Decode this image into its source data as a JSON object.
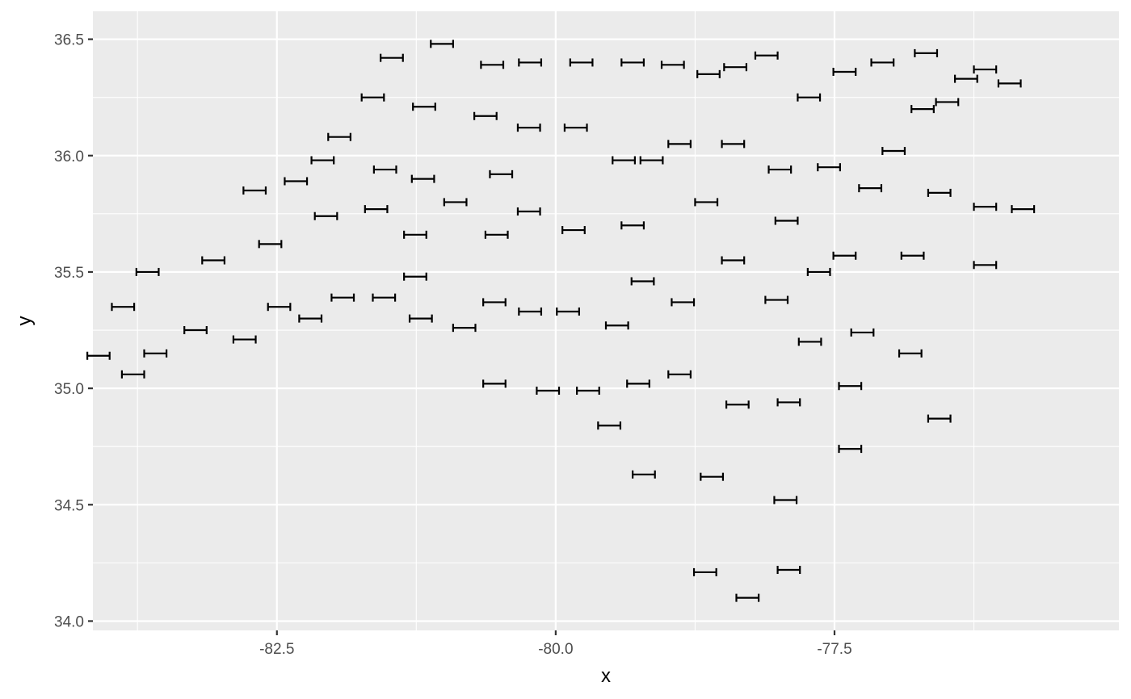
{
  "chart_data": {
    "type": "errorbarh",
    "title": "",
    "xlabel": "x",
    "ylabel": "y",
    "xlim": [
      -84.15,
      -74.95
    ],
    "ylim": [
      33.96,
      36.62
    ],
    "x_ticks": [
      -82.5,
      -80.0,
      -77.5
    ],
    "x_tick_labels": [
      "-82.5",
      "-80.0",
      "-77.5"
    ],
    "y_ticks": [
      34.0,
      34.5,
      35.0,
      35.5,
      36.0,
      36.5
    ],
    "y_tick_labels": [
      "34.0",
      "34.5",
      "35.0",
      "35.5",
      "36.0",
      "36.5"
    ],
    "grid": true,
    "background": "#ebebeb",
    "grid_color": "#ffffff",
    "bar_color": "#000000",
    "bar_halfwidth": 0.1,
    "points": [
      {
        "x": -81.02,
        "y": 36.48
      },
      {
        "x": -81.47,
        "y": 36.42
      },
      {
        "x": -80.57,
        "y": 36.39
      },
      {
        "x": -80.23,
        "y": 36.4
      },
      {
        "x": -79.77,
        "y": 36.4
      },
      {
        "x": -79.31,
        "y": 36.4
      },
      {
        "x": -78.95,
        "y": 36.39
      },
      {
        "x": -78.63,
        "y": 36.35
      },
      {
        "x": -78.39,
        "y": 36.38
      },
      {
        "x": -78.11,
        "y": 36.43
      },
      {
        "x": -77.41,
        "y": 36.36
      },
      {
        "x": -77.07,
        "y": 36.4
      },
      {
        "x": -76.68,
        "y": 36.44
      },
      {
        "x": -76.15,
        "y": 36.37
      },
      {
        "x": -76.32,
        "y": 36.33
      },
      {
        "x": -75.93,
        "y": 36.31
      },
      {
        "x": -81.64,
        "y": 36.25
      },
      {
        "x": -81.18,
        "y": 36.21
      },
      {
        "x": -80.63,
        "y": 36.17
      },
      {
        "x": -80.24,
        "y": 36.12
      },
      {
        "x": -79.82,
        "y": 36.12
      },
      {
        "x": -77.73,
        "y": 36.25
      },
      {
        "x": -76.49,
        "y": 36.23
      },
      {
        "x": -76.71,
        "y": 36.2
      },
      {
        "x": -81.94,
        "y": 36.08
      },
      {
        "x": -82.09,
        "y": 35.98
      },
      {
        "x": -82.33,
        "y": 35.89
      },
      {
        "x": -82.7,
        "y": 35.85
      },
      {
        "x": -81.53,
        "y": 35.94
      },
      {
        "x": -81.19,
        "y": 35.9
      },
      {
        "x": -80.49,
        "y": 35.92
      },
      {
        "x": -79.39,
        "y": 35.98
      },
      {
        "x": -79.14,
        "y": 35.98
      },
      {
        "x": -78.89,
        "y": 36.05
      },
      {
        "x": -78.41,
        "y": 36.05
      },
      {
        "x": -77.99,
        "y": 35.94
      },
      {
        "x": -77.55,
        "y": 35.95
      },
      {
        "x": -76.97,
        "y": 36.02
      },
      {
        "x": -77.18,
        "y": 35.86
      },
      {
        "x": -76.56,
        "y": 35.84
      },
      {
        "x": -76.15,
        "y": 35.78
      },
      {
        "x": -75.81,
        "y": 35.77
      },
      {
        "x": -82.06,
        "y": 35.74
      },
      {
        "x": -81.61,
        "y": 35.77
      },
      {
        "x": -80.9,
        "y": 35.8
      },
      {
        "x": -80.24,
        "y": 35.76
      },
      {
        "x": -78.65,
        "y": 35.8
      },
      {
        "x": -77.93,
        "y": 35.72
      },
      {
        "x": -82.56,
        "y": 35.62
      },
      {
        "x": -81.26,
        "y": 35.66
      },
      {
        "x": -80.53,
        "y": 35.66
      },
      {
        "x": -79.84,
        "y": 35.68
      },
      {
        "x": -79.31,
        "y": 35.7
      },
      {
        "x": -83.07,
        "y": 35.55
      },
      {
        "x": -83.66,
        "y": 35.5
      },
      {
        "x": -78.41,
        "y": 35.55
      },
      {
        "x": -77.41,
        "y": 35.57
      },
      {
        "x": -76.8,
        "y": 35.57
      },
      {
        "x": -76.15,
        "y": 35.53
      },
      {
        "x": -77.64,
        "y": 35.5
      },
      {
        "x": -81.26,
        "y": 35.48
      },
      {
        "x": -79.22,
        "y": 35.46
      },
      {
        "x": -83.88,
        "y": 35.35
      },
      {
        "x": -82.48,
        "y": 35.35
      },
      {
        "x": -81.91,
        "y": 35.39
      },
      {
        "x": -81.54,
        "y": 35.39
      },
      {
        "x": -80.55,
        "y": 35.37
      },
      {
        "x": -80.23,
        "y": 35.33
      },
      {
        "x": -79.89,
        "y": 35.33
      },
      {
        "x": -78.86,
        "y": 35.37
      },
      {
        "x": -78.02,
        "y": 35.38
      },
      {
        "x": -82.2,
        "y": 35.3
      },
      {
        "x": -81.21,
        "y": 35.3
      },
      {
        "x": -80.82,
        "y": 35.26
      },
      {
        "x": -79.45,
        "y": 35.27
      },
      {
        "x": -83.23,
        "y": 35.25
      },
      {
        "x": -82.79,
        "y": 35.21
      },
      {
        "x": -77.72,
        "y": 35.2
      },
      {
        "x": -77.25,
        "y": 35.24
      },
      {
        "x": -83.59,
        "y": 35.15
      },
      {
        "x": -84.1,
        "y": 35.14
      },
      {
        "x": -83.79,
        "y": 35.06
      },
      {
        "x": -76.82,
        "y": 35.15
      },
      {
        "x": -80.55,
        "y": 35.02
      },
      {
        "x": -80.07,
        "y": 34.99
      },
      {
        "x": -79.71,
        "y": 34.99
      },
      {
        "x": -79.26,
        "y": 35.02
      },
      {
        "x": -78.89,
        "y": 35.06
      },
      {
        "x": -78.37,
        "y": 34.93
      },
      {
        "x": -77.91,
        "y": 34.94
      },
      {
        "x": -77.36,
        "y": 35.01
      },
      {
        "x": -76.56,
        "y": 34.87
      },
      {
        "x": -79.52,
        "y": 34.84
      },
      {
        "x": -77.36,
        "y": 34.74
      },
      {
        "x": -79.21,
        "y": 34.63
      },
      {
        "x": -78.6,
        "y": 34.62
      },
      {
        "x": -77.94,
        "y": 34.52
      },
      {
        "x": -78.66,
        "y": 34.21
      },
      {
        "x": -77.91,
        "y": 34.22
      },
      {
        "x": -78.28,
        "y": 34.1
      }
    ]
  }
}
